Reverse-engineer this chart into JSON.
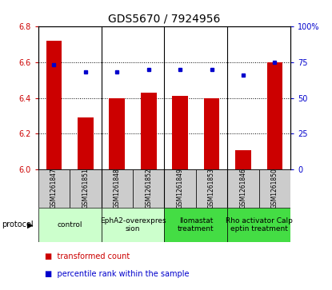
{
  "title": "GDS5670 / 7924956",
  "samples": [
    "GSM1261847",
    "GSM1261851",
    "GSM1261848",
    "GSM1261852",
    "GSM1261849",
    "GSM1261853",
    "GSM1261846",
    "GSM1261850"
  ],
  "transformed_counts": [
    6.72,
    6.29,
    6.4,
    6.43,
    6.41,
    6.4,
    6.11,
    6.6
  ],
  "percentile_ranks": [
    73,
    68,
    68,
    70,
    70,
    70,
    66,
    75
  ],
  "ylim_left": [
    6.0,
    6.8
  ],
  "ylim_right": [
    0,
    100
  ],
  "yticks_left": [
    6.0,
    6.2,
    6.4,
    6.6,
    6.8
  ],
  "yticks_right": [
    0,
    25,
    50,
    75,
    100
  ],
  "yticklabels_right": [
    "0",
    "25",
    "50",
    "75",
    "100%"
  ],
  "protocols": [
    {
      "label": "control",
      "start": 0,
      "end": 2,
      "color": "#ccffcc"
    },
    {
      "label": "EphA2-overexpres\nsion",
      "start": 2,
      "end": 4,
      "color": "#ccffcc"
    },
    {
      "label": "Ilomastat\ntreatment",
      "start": 4,
      "end": 6,
      "color": "#44dd44"
    },
    {
      "label": "Rho activator Calp\neptin treatment",
      "start": 6,
      "end": 8,
      "color": "#44dd44"
    }
  ],
  "bar_color": "#cc0000",
  "dot_color": "#0000cc",
  "bar_width": 0.5,
  "bg_color": "#ffffff",
  "sample_cell_color": "#cccccc",
  "label_color_left": "#cc0000",
  "label_color_right": "#0000cc",
  "protocol_label": "protocol",
  "legend_bar": "transformed count",
  "legend_dot": "percentile rank within the sample",
  "tick_fontsize": 7,
  "title_fontsize": 10,
  "sample_fontsize": 5.5,
  "protocol_fontsize": 6.5,
  "legend_fontsize": 7
}
